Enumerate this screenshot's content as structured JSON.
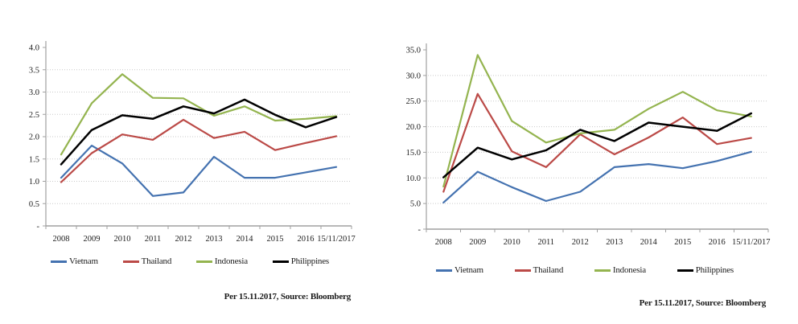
{
  "chart_data": [
    {
      "type": "line",
      "title": "",
      "categories": [
        "2008",
        "2009",
        "2010",
        "2011",
        "2012",
        "2013",
        "2014",
        "2015",
        "2016",
        "15/11/2017"
      ],
      "y_axis": {
        "min": 0,
        "max": 4.0,
        "step": 0.5,
        "tick_labels": [
          "4.0",
          "3.5",
          "3.0",
          "2.5",
          "2.0",
          "1.5",
          "1.0",
          "0.5",
          "-"
        ]
      },
      "grid": "horizontal-dotted",
      "legend_position": "bottom",
      "series": [
        {
          "name": "Vietnam",
          "color": "#4472B0",
          "values": [
            1.08,
            1.8,
            1.4,
            0.67,
            0.75,
            1.55,
            1.08,
            1.08,
            1.2,
            1.32
          ]
        },
        {
          "name": "Thailand",
          "color": "#BB4A47",
          "values": [
            0.98,
            1.63,
            2.05,
            1.93,
            2.38,
            1.97,
            2.11,
            1.7,
            1.86,
            2.01
          ]
        },
        {
          "name": "Indonesia",
          "color": "#94B44F",
          "values": [
            1.6,
            2.75,
            3.4,
            2.87,
            2.86,
            2.47,
            2.68,
            2.36,
            2.4,
            2.46
          ]
        },
        {
          "name": "Philippines",
          "color": "#000000",
          "values": [
            1.38,
            2.15,
            2.48,
            2.4,
            2.68,
            2.52,
            2.83,
            2.49,
            2.21,
            2.44
          ]
        }
      ],
      "footer": "Per 15.11.2017, Source: Bloomberg"
    },
    {
      "type": "line",
      "title": "",
      "categories": [
        "2008",
        "2009",
        "2010",
        "2011",
        "2012",
        "2013",
        "2014",
        "2015",
        "2016",
        "15/11/2017"
      ],
      "y_axis": {
        "min": 0,
        "max": 35.0,
        "step": 5.0,
        "tick_labels": [
          "35.0",
          "30.0",
          "25.0",
          "20.0",
          "15.0",
          "10.0",
          "5.0",
          "-"
        ]
      },
      "grid": "horizontal-dotted",
      "legend_position": "bottom",
      "series": [
        {
          "name": "Vietnam",
          "color": "#4472B0",
          "values": [
            5.2,
            11.2,
            8.2,
            5.5,
            7.3,
            12.1,
            12.7,
            11.9,
            13.3,
            15.1
          ]
        },
        {
          "name": "Thailand",
          "color": "#BB4A47",
          "values": [
            7.3,
            26.4,
            15.2,
            12.1,
            18.5,
            14.6,
            17.9,
            21.8,
            16.6,
            17.8
          ]
        },
        {
          "name": "Indonesia",
          "color": "#94B44F",
          "values": [
            8.3,
            34.0,
            21.1,
            16.9,
            18.7,
            19.4,
            23.5,
            26.8,
            23.2,
            22.0
          ]
        },
        {
          "name": "Philippines",
          "color": "#000000",
          "values": [
            10.1,
            15.9,
            13.6,
            15.4,
            19.4,
            17.2,
            20.8,
            20.0,
            19.2,
            22.6
          ]
        }
      ],
      "footer": "Per 15.11.2017, Source: Bloomberg"
    }
  ],
  "style": {
    "axis_color": "#a0a0a0",
    "grid_color": "#c9c9c9"
  }
}
